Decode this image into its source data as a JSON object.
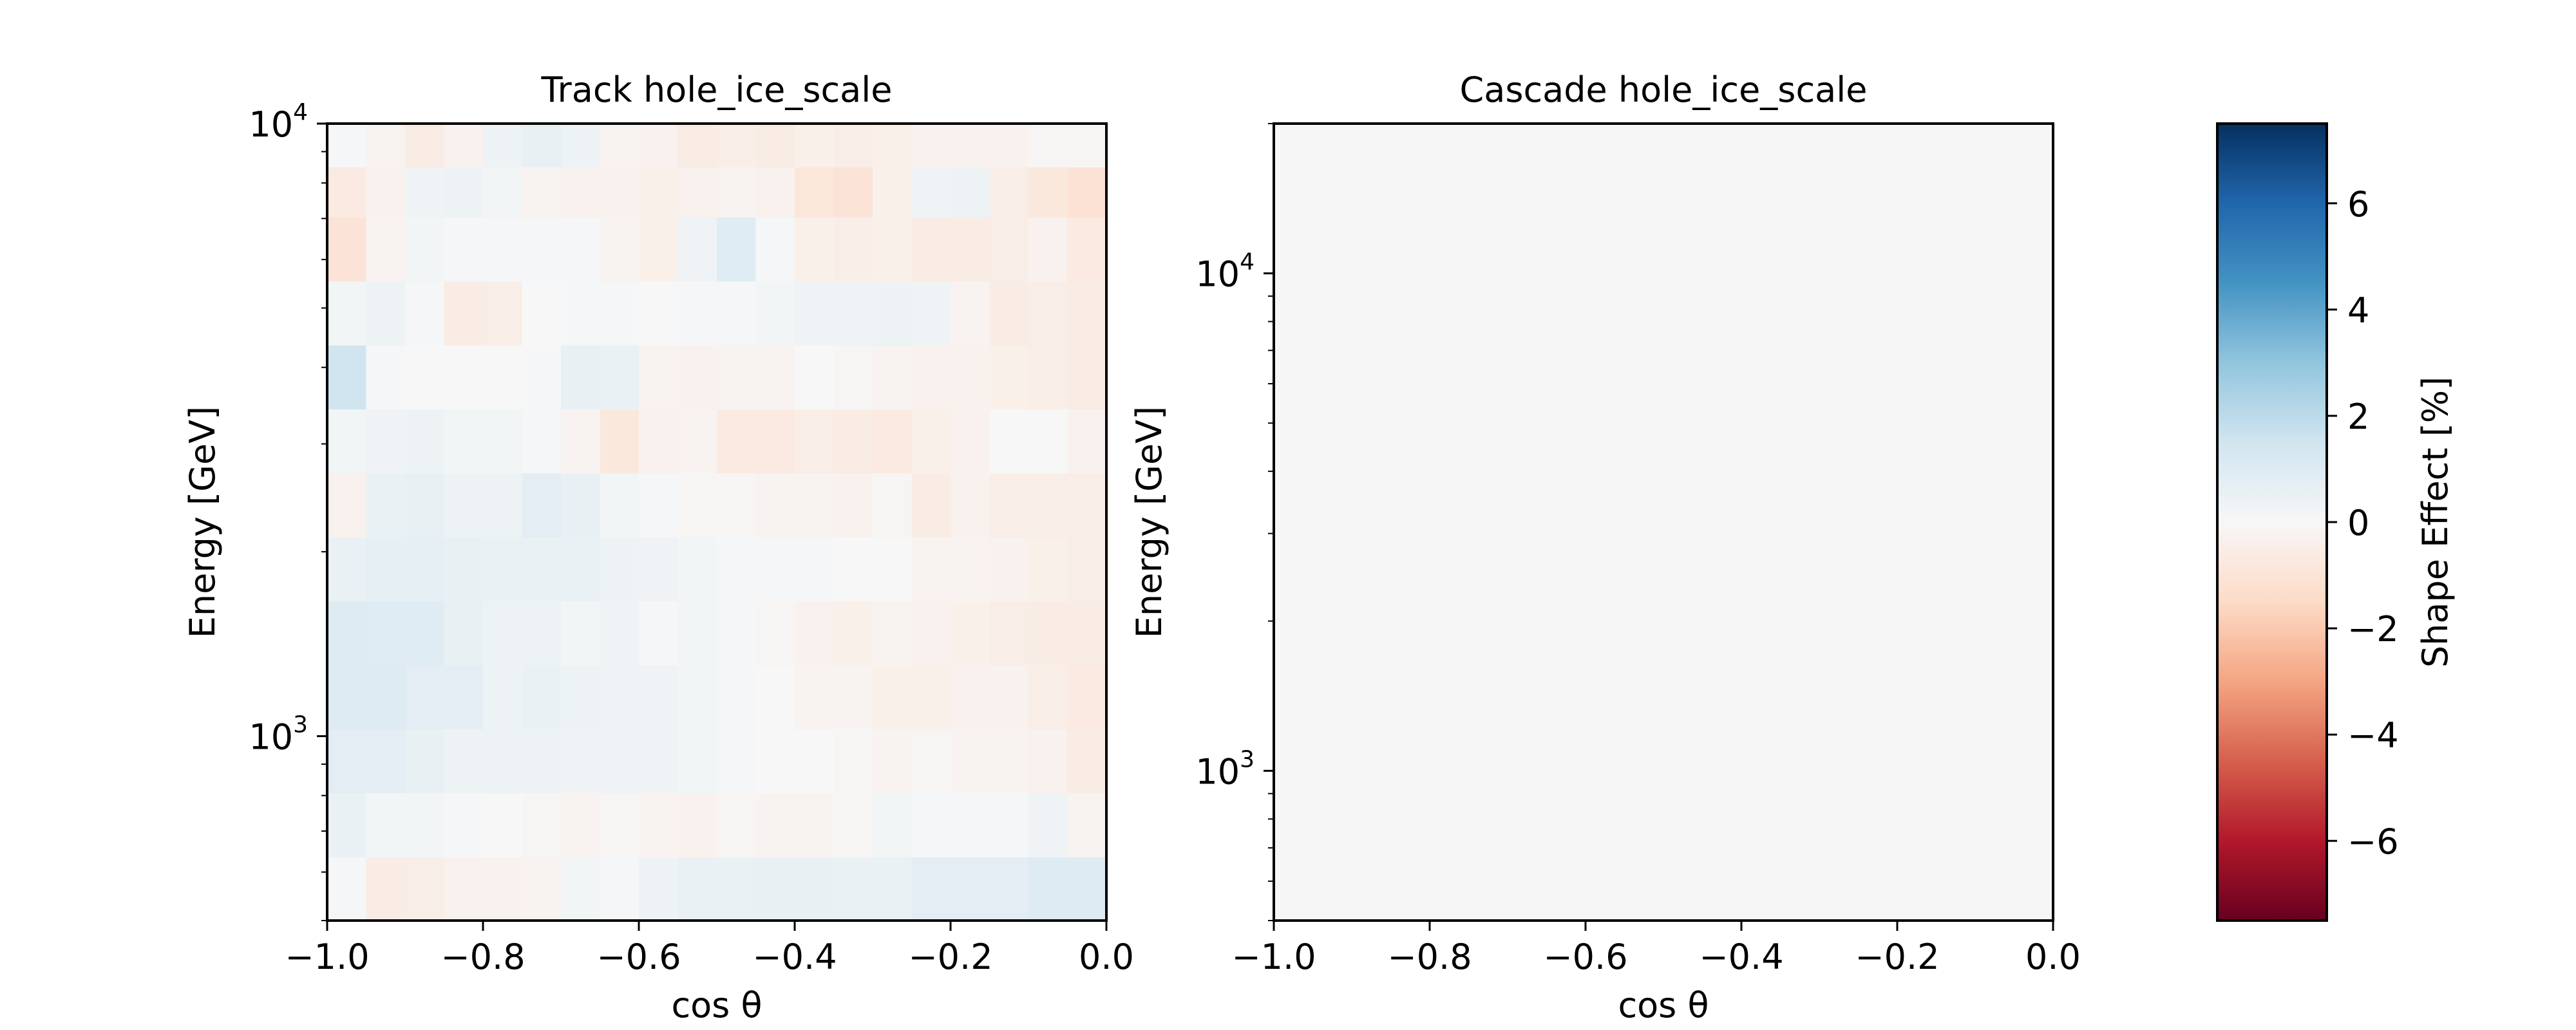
{
  "chart_data": [
    {
      "type": "heatmap",
      "title": "Track hole_ice_scale",
      "xlabel": "cos θ",
      "ylabel": "Energy [GeV]",
      "xlim": [
        -1.0,
        0.0
      ],
      "ylim": [
        500,
        10000
      ],
      "yscale": "log",
      "x_ticks": [
        -1.0,
        -0.8,
        -0.6,
        -0.4,
        -0.2,
        0.0
      ],
      "x_tick_labels": [
        "−1.0",
        "−0.8",
        "−0.6",
        "−0.4",
        "−0.2",
        "0.0"
      ],
      "y_major_ticks": [
        {
          "base": "10",
          "exp": "3",
          "value": 1000
        },
        {
          "base": "10",
          "exp": "4",
          "value": 10000
        }
      ],
      "x_bins": 20,
      "y_bin_edges": [
        500,
        635,
        808,
        1028,
        1307,
        1662,
        2114,
        2689,
        3420,
        4350,
        5532,
        7036,
        8495,
        10000
      ],
      "z_rows_bottom_to_top": [
        [
          0.1,
          -0.6,
          -0.5,
          -0.3,
          -0.3,
          -0.2,
          0.2,
          0.1,
          0.4,
          0.5,
          0.5,
          0.6,
          0.6,
          0.5,
          0.5,
          0.8,
          0.8,
          0.8,
          1.0,
          1.0
        ],
        [
          0.5,
          0.2,
          0.2,
          0.1,
          0.0,
          -0.1,
          -0.2,
          -0.1,
          -0.2,
          -0.3,
          -0.1,
          -0.2,
          -0.2,
          -0.1,
          0.2,
          0.1,
          0.1,
          0.1,
          0.3,
          -0.2
        ],
        [
          0.8,
          0.8,
          0.6,
          0.4,
          0.4,
          0.4,
          0.3,
          0.3,
          0.3,
          0.2,
          0.1,
          0.0,
          0.0,
          -0.1,
          -0.2,
          -0.1,
          -0.2,
          -0.2,
          -0.3,
          -0.6
        ],
        [
          1.0,
          1.0,
          0.8,
          0.8,
          0.4,
          0.5,
          0.4,
          0.3,
          0.3,
          0.2,
          0.1,
          0.0,
          -0.2,
          -0.2,
          -0.4,
          -0.4,
          -0.3,
          -0.3,
          -0.5,
          -0.7
        ],
        [
          1.0,
          0.9,
          0.9,
          0.6,
          0.4,
          0.4,
          0.2,
          0.3,
          0.1,
          0.2,
          0.1,
          -0.1,
          -0.3,
          -0.4,
          -0.2,
          -0.3,
          -0.4,
          -0.5,
          -0.6,
          -0.6
        ],
        [
          0.5,
          0.7,
          0.7,
          0.6,
          0.5,
          0.5,
          0.5,
          0.4,
          0.3,
          0.2,
          0.1,
          0.1,
          0.1,
          0.0,
          0.0,
          -0.2,
          -0.2,
          -0.3,
          -0.4,
          -0.5
        ],
        [
          -0.3,
          0.5,
          0.6,
          0.4,
          0.4,
          0.8,
          0.6,
          0.2,
          0.1,
          -0.1,
          -0.1,
          -0.2,
          -0.2,
          -0.3,
          -0.1,
          -0.6,
          -0.3,
          -0.5,
          -0.5,
          -0.5
        ],
        [
          0.2,
          0.3,
          0.4,
          0.2,
          0.2,
          0.1,
          -0.2,
          -0.8,
          -0.3,
          -0.2,
          -0.7,
          -0.7,
          -0.5,
          -0.6,
          -0.7,
          -0.4,
          -0.3,
          0.0,
          0.0,
          -0.3
        ],
        [
          1.5,
          0.1,
          0.0,
          0.0,
          0.0,
          0.1,
          0.6,
          0.5,
          -0.2,
          -0.3,
          -0.2,
          -0.2,
          0.0,
          -0.1,
          -0.2,
          -0.3,
          -0.3,
          -0.4,
          -0.5,
          -0.6
        ],
        [
          0.2,
          0.4,
          0.1,
          -0.6,
          -0.5,
          0.0,
          0.1,
          0.1,
          0.0,
          0.1,
          0.1,
          0.2,
          0.3,
          0.3,
          0.4,
          0.3,
          -0.2,
          -0.6,
          -0.5,
          -0.6
        ],
        [
          -1.0,
          -0.2,
          0.2,
          0.1,
          0.1,
          0.1,
          0.1,
          -0.2,
          -0.4,
          0.3,
          0.9,
          0.1,
          -0.4,
          -0.5,
          -0.4,
          -0.6,
          -0.6,
          -0.5,
          -0.3,
          -0.7
        ],
        [
          -0.7,
          -0.3,
          0.3,
          0.4,
          0.2,
          -0.2,
          -0.3,
          -0.3,
          -0.4,
          -0.3,
          -0.2,
          -0.3,
          -0.9,
          -1.0,
          -0.4,
          0.3,
          0.4,
          -0.5,
          -0.8,
          -1.1
        ],
        [
          0.1,
          -0.2,
          -0.6,
          -0.3,
          0.4,
          0.6,
          0.4,
          -0.2,
          -0.3,
          -0.6,
          -0.5,
          -0.6,
          -0.4,
          -0.5,
          -0.4,
          -0.3,
          -0.3,
          -0.3,
          -0.1,
          -0.1
        ]
      ]
    },
    {
      "type": "heatmap",
      "title": "Cascade hole_ice_scale",
      "xlabel": "cos θ",
      "ylabel": "Energy [GeV]",
      "xlim": [
        -1.0,
        0.0
      ],
      "ylim": [
        500,
        20000
      ],
      "yscale": "log",
      "x_ticks": [
        -1.0,
        -0.8,
        -0.6,
        -0.4,
        -0.2,
        0.0
      ],
      "x_tick_labels": [
        "−1.0",
        "−0.8",
        "−0.6",
        "−0.4",
        "−0.2",
        "0.0"
      ],
      "y_major_ticks": [
        {
          "base": "10",
          "exp": "3",
          "value": 1000
        },
        {
          "base": "10",
          "exp": "4",
          "value": 10000
        }
      ],
      "uniform_value": 0.0
    }
  ],
  "colorbar": {
    "label": "Shape Effect [%]",
    "colormap": "RdBu",
    "range": [
      -7.5,
      7.5
    ],
    "ticks": [
      6,
      4,
      2,
      0,
      -2,
      -4,
      -6
    ],
    "tick_labels": [
      "6",
      "4",
      "2",
      "0",
      "−2",
      "−4",
      "−6"
    ]
  },
  "colors": {
    "colormap_stops": [
      "#67001f",
      "#b2182b",
      "#d6604d",
      "#f4a582",
      "#fddbc7",
      "#f7f7f7",
      "#d1e5f0",
      "#92c5de",
      "#4393c3",
      "#2166ac",
      "#053061"
    ],
    "uniform_fill": "#f5f6f5"
  }
}
